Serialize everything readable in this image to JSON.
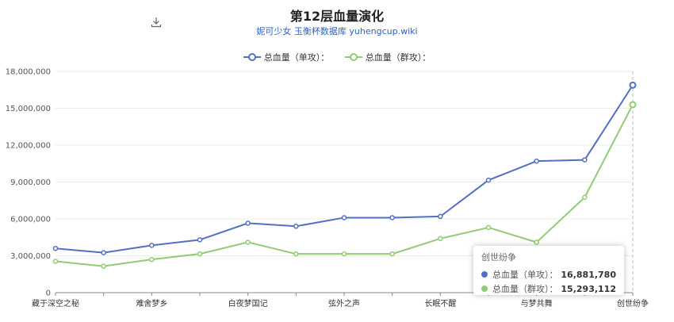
{
  "title": "第12层血量演化",
  "subtitle": "妮可少女 玉衡杯数据库 yuhengcup.wiki",
  "icons": {
    "download": "download-icon"
  },
  "colors": {
    "series_single": "#5470c6",
    "series_group": "#91cc75"
  },
  "legend": [
    "总血量（单攻）：",
    "总血量（群攻）："
  ],
  "tooltip": {
    "title": "创世纷争",
    "rows": [
      {
        "name": "总血量（单攻）：",
        "value": "16,881,780"
      },
      {
        "name": "总血量（群攻）：",
        "value": "15,293,112"
      }
    ]
  },
  "chart_data": {
    "type": "line",
    "categories": [
      "藏于深空之秘",
      "",
      "难舍梦乡",
      "",
      "白夜梦国记",
      "",
      "弦外之声",
      "",
      "长眠不醒",
      "",
      "与梦共舞",
      "",
      "创世纷争"
    ],
    "x_tick_labels": [
      "藏于深空之秘",
      "难舍梦乡",
      "白夜梦国记",
      "弦外之声",
      "长眠不醒",
      "与梦共舞",
      "创世纷争"
    ],
    "series": [
      {
        "name": "总血量（单攻）",
        "values": [
          3600000,
          3250000,
          3850000,
          4300000,
          5650000,
          5400000,
          6100000,
          6100000,
          6200000,
          9150000,
          10700000,
          10800000,
          16881780
        ]
      },
      {
        "name": "总血量（群攻）",
        "values": [
          2550000,
          2150000,
          2700000,
          3150000,
          4100000,
          3150000,
          3150000,
          3150000,
          4400000,
          5300000,
          4100000,
          7750000,
          15293112
        ]
      }
    ],
    "y_ticks": [
      "0",
      "3,000,000",
      "6,000,000",
      "9,000,000",
      "12,000,000",
      "15,000,000",
      "18,000,000"
    ],
    "ylim": [
      0,
      18000000
    ],
    "grid": true,
    "legend_position": "top-center"
  }
}
